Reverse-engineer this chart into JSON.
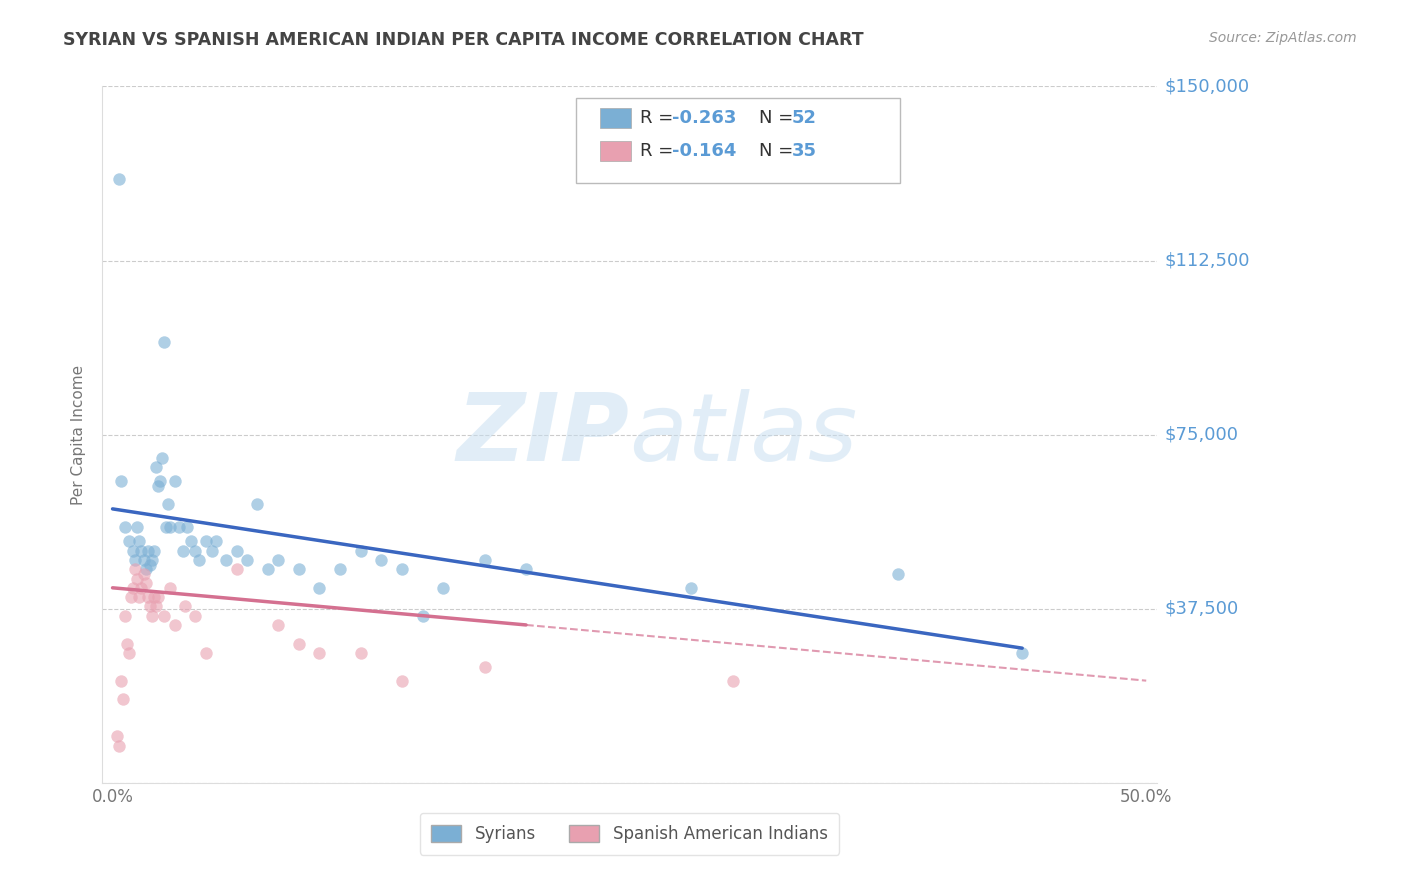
{
  "title": "SYRIAN VS SPANISH AMERICAN INDIAN PER CAPITA INCOME CORRELATION CHART",
  "source": "Source: ZipAtlas.com",
  "ylabel": "Per Capita Income",
  "xlim": [
    -0.005,
    0.505
  ],
  "ylim": [
    0,
    150000
  ],
  "xticks": [
    0.0,
    0.1,
    0.2,
    0.3,
    0.4,
    0.5
  ],
  "xticklabels": [
    "0.0%",
    "",
    "",
    "",
    "",
    "50.0%"
  ],
  "yticks": [
    0,
    37500,
    75000,
    112500,
    150000
  ],
  "yticklabels": [
    "",
    "$37,500",
    "$75,000",
    "$112,500",
    "$150,000"
  ],
  "syrian_color": "#7bafd4",
  "spanish_color": "#e8a0b0",
  "trend_blue": "#3a66c0",
  "trend_pink": "#d47090",
  "watermark_zip": "ZIP",
  "watermark_atlas": "atlas",
  "background_color": "#ffffff",
  "grid_color": "#cccccc",
  "right_label_color": "#5b9bd5",
  "title_color": "#444444",
  "syrians_x": [
    0.003,
    0.004,
    0.006,
    0.008,
    0.01,
    0.011,
    0.012,
    0.013,
    0.014,
    0.015,
    0.016,
    0.017,
    0.018,
    0.019,
    0.02,
    0.021,
    0.022,
    0.023,
    0.024,
    0.025,
    0.026,
    0.027,
    0.028,
    0.03,
    0.032,
    0.034,
    0.036,
    0.038,
    0.04,
    0.042,
    0.045,
    0.048,
    0.05,
    0.055,
    0.06,
    0.065,
    0.07,
    0.075,
    0.08,
    0.09,
    0.1,
    0.11,
    0.12,
    0.13,
    0.14,
    0.15,
    0.16,
    0.18,
    0.2,
    0.28,
    0.38,
    0.44
  ],
  "syrians_y": [
    130000,
    65000,
    55000,
    52000,
    50000,
    48000,
    55000,
    52000,
    50000,
    48000,
    46000,
    50000,
    47000,
    48000,
    50000,
    68000,
    64000,
    65000,
    70000,
    95000,
    55000,
    60000,
    55000,
    65000,
    55000,
    50000,
    55000,
    52000,
    50000,
    48000,
    52000,
    50000,
    52000,
    48000,
    50000,
    48000,
    60000,
    46000,
    48000,
    46000,
    42000,
    46000,
    50000,
    48000,
    46000,
    36000,
    42000,
    48000,
    46000,
    42000,
    45000,
    28000
  ],
  "spanish_x": [
    0.002,
    0.003,
    0.004,
    0.005,
    0.006,
    0.007,
    0.008,
    0.009,
    0.01,
    0.011,
    0.012,
    0.013,
    0.014,
    0.015,
    0.016,
    0.017,
    0.018,
    0.019,
    0.02,
    0.021,
    0.022,
    0.025,
    0.028,
    0.03,
    0.035,
    0.04,
    0.045,
    0.06,
    0.08,
    0.09,
    0.1,
    0.12,
    0.14,
    0.18,
    0.3
  ],
  "spanish_y": [
    10000,
    8000,
    22000,
    18000,
    36000,
    30000,
    28000,
    40000,
    42000,
    46000,
    44000,
    40000,
    42000,
    45000,
    43000,
    40000,
    38000,
    36000,
    40000,
    38000,
    40000,
    36000,
    42000,
    34000,
    38000,
    36000,
    28000,
    46000,
    34000,
    30000,
    28000,
    28000,
    22000,
    25000,
    22000
  ],
  "blue_trend_x0": 0.0,
  "blue_trend_y0": 59000,
  "blue_trend_x1": 0.44,
  "blue_trend_y1": 29000,
  "pink_trend_solid_x0": 0.0,
  "pink_trend_solid_y0": 42000,
  "pink_trend_solid_x1": 0.2,
  "pink_trend_solid_y1": 34000,
  "pink_trend_dash_x0": 0.2,
  "pink_trend_dash_y0": 34000,
  "pink_trend_dash_x1": 0.5,
  "pink_trend_dash_y1": 22000
}
